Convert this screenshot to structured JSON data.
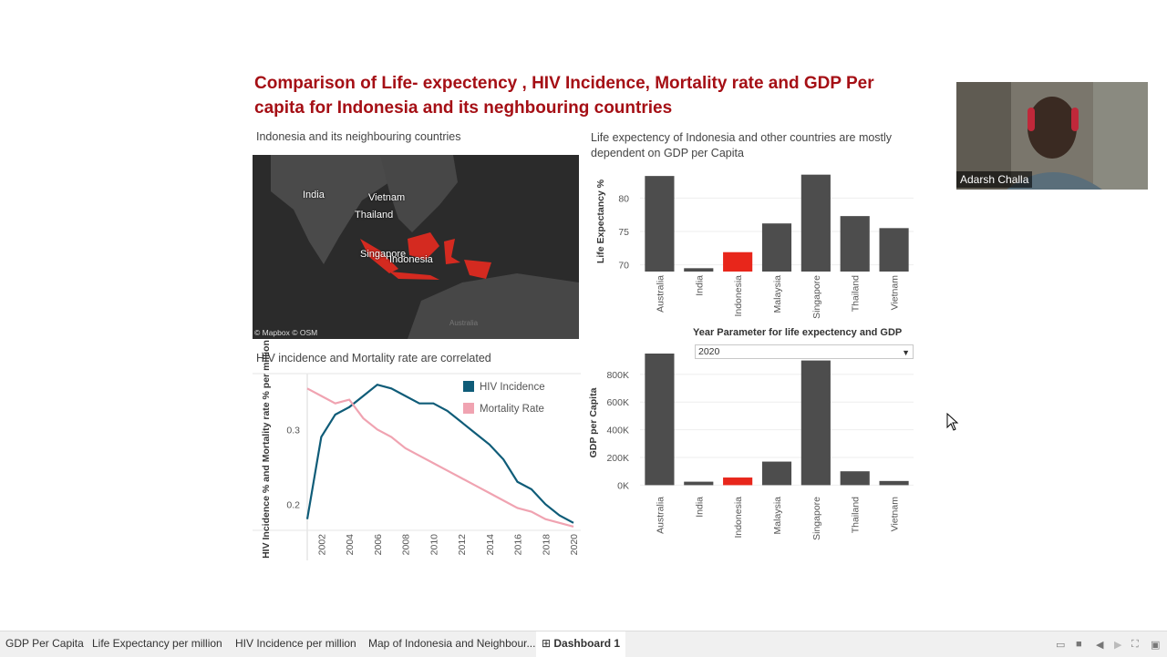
{
  "dashboard": {
    "title": "Comparison of Life- expectency , HIV Incidence, Mortality rate and GDP Per capita for Indonesia and its neghbouring countries",
    "map_subtitle": "Indonesia and its neighbouring countries",
    "life_subtitle": "Life expectency of Indonesia and other countries are mostly dependent on GDP per Capita",
    "hiv_subtitle": "HIV incidence and Mortality rate are correlated",
    "accent_color": "#a50f15"
  },
  "map": {
    "labels": [
      "India",
      "Vietnam",
      "Thailand",
      "Singapore",
      "Indonesia",
      "Australia"
    ],
    "credit": "© Mapbox © OSM"
  },
  "parameter": {
    "label": "Year Parameter for life expectency and GDP",
    "value": "2020"
  },
  "webcam": {
    "name": "Adarsh Challa"
  },
  "chart_data": [
    {
      "type": "bar",
      "title": "Life expectency of Indonesia and other countries are mostly dependent on GDP per Capita",
      "ylabel": "Life Expectancy %",
      "categories": [
        "Australia",
        "India",
        "Indonesia",
        "Malaysia",
        "Singapore",
        "Thailand",
        "Vietnam"
      ],
      "values": [
        83.3,
        69.5,
        71.9,
        76.2,
        83.5,
        77.3,
        75.5
      ],
      "highlight": "Indonesia",
      "ylim": [
        69,
        84
      ],
      "yticks": [
        70,
        75,
        80
      ]
    },
    {
      "type": "bar",
      "title": "GDP per Capita",
      "ylabel": "GDP per Capita",
      "categories": [
        "Australia",
        "India",
        "Indonesia",
        "Malaysia",
        "Singapore",
        "Thailand",
        "Vietnam"
      ],
      "values": [
        950000,
        25000,
        55000,
        170000,
        900000,
        100000,
        30000
      ],
      "highlight": "Indonesia",
      "ylim": [
        -50000,
        950000
      ],
      "yticks": [
        0,
        200000,
        400000,
        600000,
        800000
      ],
      "yticklabels": [
        "0K",
        "200K",
        "400K",
        "600K",
        "800K"
      ]
    },
    {
      "type": "line",
      "title": "HIV incidence and Mortality rate are correlated",
      "ylabel": "HIV Incidence % and Mortality rate % per million",
      "x": [
        2001,
        2002,
        2003,
        2004,
        2005,
        2006,
        2007,
        2008,
        2009,
        2010,
        2011,
        2012,
        2013,
        2014,
        2015,
        2016,
        2017,
        2018,
        2019,
        2020
      ],
      "xticks": [
        2002,
        2004,
        2006,
        2008,
        2010,
        2012,
        2014,
        2016,
        2018,
        2020
      ],
      "yticks": [
        0.2,
        0.3
      ],
      "ylim": [
        0.165,
        0.37
      ],
      "series": [
        {
          "name": "HIV Incidence",
          "color": "#0f5c78",
          "values": [
            0.18,
            0.29,
            0.32,
            0.33,
            0.345,
            0.36,
            0.355,
            0.345,
            0.335,
            0.335,
            0.325,
            0.31,
            0.295,
            0.28,
            0.26,
            0.23,
            0.22,
            0.2,
            0.185,
            0.175
          ]
        },
        {
          "name": "Mortality Rate",
          "color": "#f0a3b1",
          "values": [
            0.355,
            0.345,
            0.335,
            0.34,
            0.315,
            0.3,
            0.29,
            0.275,
            0.265,
            0.255,
            0.245,
            0.235,
            0.225,
            0.215,
            0.205,
            0.195,
            0.19,
            0.18,
            0.175,
            0.17
          ]
        }
      ]
    }
  ],
  "tabs": [
    {
      "label": "GDP Per Capita"
    },
    {
      "label": "Life Expectancy per million"
    },
    {
      "label": "HIV Incidence per million"
    },
    {
      "label": "Map of Indonesia and Neighbour..."
    },
    {
      "label": "Dashboard 1"
    }
  ]
}
